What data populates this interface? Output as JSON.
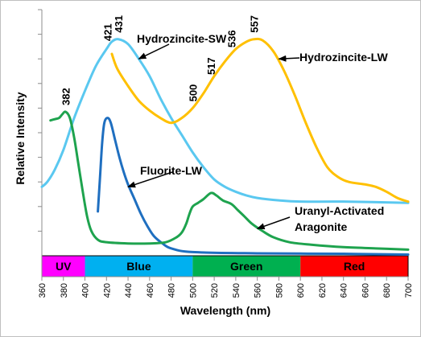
{
  "chart_data": {
    "type": "line",
    "title": "",
    "xlabel": "Wavelength (nm)",
    "ylabel": "Relative Intensity",
    "xlim": [
      360,
      700
    ],
    "ylim": [
      0,
      10
    ],
    "x_ticks": [
      "360",
      "380",
      "400",
      "420",
      "440",
      "460",
      "480",
      "500",
      "520",
      "540",
      "560",
      "580",
      "600",
      "620",
      "640",
      "660",
      "680",
      "700"
    ],
    "grid": false,
    "bands": [
      {
        "label": "UV",
        "from": 360,
        "to": 400,
        "color": "#ff00ff"
      },
      {
        "label": "Blue",
        "from": 400,
        "to": 500,
        "color": "#00b0f0"
      },
      {
        "label": "Green",
        "from": 500,
        "to": 600,
        "color": "#00b050"
      },
      {
        "label": "Red",
        "from": 600,
        "to": 700,
        "color": "#ff0000"
      }
    ],
    "series": [
      {
        "name": "Hydrozincite-SW",
        "color": "#5ac8f0",
        "points": [
          [
            360,
            2.8
          ],
          [
            365,
            3.0
          ],
          [
            372,
            3.5
          ],
          [
            380,
            4.3
          ],
          [
            390,
            5.6
          ],
          [
            400,
            6.7
          ],
          [
            410,
            7.7
          ],
          [
            420,
            8.4
          ],
          [
            425,
            8.7
          ],
          [
            431,
            8.8
          ],
          [
            440,
            8.6
          ],
          [
            450,
            8.0
          ],
          [
            460,
            7.3
          ],
          [
            470,
            6.4
          ],
          [
            480,
            5.6
          ],
          [
            490,
            4.9
          ],
          [
            500,
            4.2
          ],
          [
            510,
            3.6
          ],
          [
            520,
            3.1
          ],
          [
            530,
            2.8
          ],
          [
            540,
            2.6
          ],
          [
            550,
            2.45
          ],
          [
            560,
            2.35
          ],
          [
            580,
            2.25
          ],
          [
            600,
            2.2
          ],
          [
            640,
            2.2
          ],
          [
            700,
            2.15
          ]
        ]
      },
      {
        "name": "Hydrozincite-LW",
        "color": "#ffc000",
        "points": [
          [
            425,
            8.2
          ],
          [
            430,
            7.6
          ],
          [
            440,
            6.9
          ],
          [
            450,
            6.3
          ],
          [
            460,
            5.9
          ],
          [
            470,
            5.6
          ],
          [
            480,
            5.4
          ],
          [
            490,
            5.6
          ],
          [
            500,
            6.0
          ],
          [
            510,
            6.6
          ],
          [
            520,
            7.3
          ],
          [
            530,
            7.9
          ],
          [
            540,
            8.4
          ],
          [
            550,
            8.7
          ],
          [
            557,
            8.8
          ],
          [
            565,
            8.75
          ],
          [
            575,
            8.3
          ],
          [
            585,
            7.5
          ],
          [
            595,
            6.5
          ],
          [
            605,
            5.4
          ],
          [
            615,
            4.4
          ],
          [
            625,
            3.6
          ],
          [
            635,
            3.2
          ],
          [
            645,
            3.0
          ],
          [
            660,
            2.9
          ],
          [
            670,
            2.8
          ],
          [
            680,
            2.6
          ],
          [
            690,
            2.35
          ],
          [
            700,
            2.2
          ]
        ]
      },
      {
        "name": "Fluorite-LW",
        "color": "#1f6fc0",
        "points": [
          [
            412,
            1.8
          ],
          [
            414,
            3.2
          ],
          [
            416,
            4.6
          ],
          [
            418,
            5.4
          ],
          [
            421,
            5.6
          ],
          [
            424,
            5.4
          ],
          [
            428,
            4.7
          ],
          [
            432,
            4.0
          ],
          [
            436,
            3.4
          ],
          [
            440,
            2.9
          ],
          [
            446,
            2.3
          ],
          [
            452,
            1.7
          ],
          [
            458,
            1.2
          ],
          [
            464,
            0.8
          ],
          [
            472,
            0.5
          ],
          [
            480,
            0.3
          ],
          [
            500,
            0.15
          ],
          [
            560,
            0.1
          ],
          [
            640,
            0.08
          ],
          [
            700,
            0.05
          ]
        ]
      },
      {
        "name": "Uranyl-Activated Aragonite",
        "color": "#1ea34e",
        "points": [
          [
            368,
            5.5
          ],
          [
            372,
            5.55
          ],
          [
            376,
            5.6
          ],
          [
            379,
            5.75
          ],
          [
            382,
            5.85
          ],
          [
            386,
            5.6
          ],
          [
            390,
            4.8
          ],
          [
            394,
            3.7
          ],
          [
            398,
            2.6
          ],
          [
            402,
            1.6
          ],
          [
            406,
            1.0
          ],
          [
            412,
            0.65
          ],
          [
            420,
            0.55
          ],
          [
            440,
            0.5
          ],
          [
            460,
            0.5
          ],
          [
            475,
            0.55
          ],
          [
            485,
            0.75
          ],
          [
            490,
            0.95
          ],
          [
            494,
            1.3
          ],
          [
            497,
            1.7
          ],
          [
            500,
            2.0
          ],
          [
            505,
            2.15
          ],
          [
            510,
            2.3
          ],
          [
            517,
            2.55
          ],
          [
            522,
            2.45
          ],
          [
            528,
            2.25
          ],
          [
            536,
            2.1
          ],
          [
            542,
            1.85
          ],
          [
            548,
            1.6
          ],
          [
            555,
            1.3
          ],
          [
            565,
            1.0
          ],
          [
            575,
            0.75
          ],
          [
            590,
            0.55
          ],
          [
            610,
            0.45
          ],
          [
            640,
            0.35
          ],
          [
            670,
            0.3
          ],
          [
            700,
            0.25
          ]
        ]
      }
    ],
    "peak_labels": [
      {
        "text": "382",
        "x": 382
      },
      {
        "text": "421",
        "x": 421
      },
      {
        "text": "431",
        "x": 431
      },
      {
        "text": "557",
        "x": 557
      },
      {
        "text": "500",
        "x": 500
      },
      {
        "text": "517",
        "x": 517
      },
      {
        "text": "536",
        "x": 536
      }
    ],
    "annotations": [
      {
        "text": "Hydrozincite-SW",
        "arrow_to": [
          450,
          8.0
        ]
      },
      {
        "text": "Hydrozincite-LW",
        "arrow_to": [
          580,
          8.0
        ]
      },
      {
        "text": "Fluorite-LW",
        "arrow_to": [
          440,
          2.8
        ]
      },
      {
        "text": "Uranyl-Activated",
        "text2": "Aragonite",
        "arrow_to": [
          560,
          1.1
        ]
      }
    ]
  }
}
